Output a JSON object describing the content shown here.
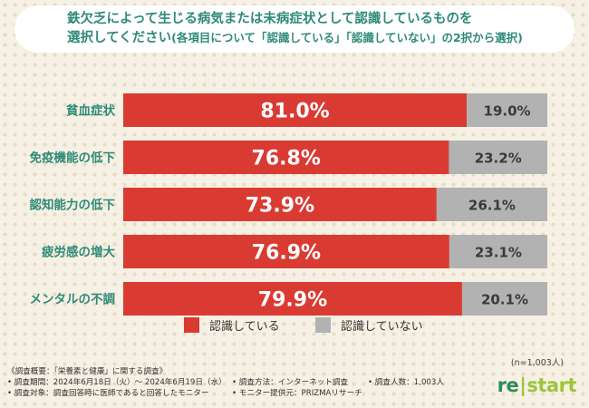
{
  "title": {
    "line1": "鉄欠乏によって生じる病気または未病症状として認識しているものを",
    "line2_main": "選択してください",
    "line2_sub": "(各項目について「認識している」「認識していない」の2択から選択)"
  },
  "chart_data": {
    "type": "bar",
    "orientation": "horizontal",
    "stacked": true,
    "percent_stacked": true,
    "categories": [
      "貧血症状",
      "免疫機能の低下",
      "認知能力の低下",
      "疲労感の増大",
      "メンタルの不調"
    ],
    "series": [
      {
        "name": "認識している",
        "color": "#d93b33",
        "values": [
          81.0,
          76.8,
          73.9,
          76.9,
          79.9
        ]
      },
      {
        "name": "認識していない",
        "color": "#b2b2b2",
        "values": [
          19.0,
          23.2,
          26.1,
          23.1,
          20.1
        ]
      }
    ],
    "value_labels": [
      [
        "81.0%",
        "76.8%",
        "73.9%",
        "76.9%",
        "79.9%"
      ],
      [
        "19.0%",
        "23.2%",
        "26.1%",
        "23.1%",
        "20.1%"
      ]
    ],
    "xlim": [
      0,
      100
    ],
    "legend_position": "bottom-center"
  },
  "legend": [
    {
      "label": "認識している",
      "color": "#d93b33"
    },
    {
      "label": "認識していない",
      "color": "#b2b2b2"
    }
  ],
  "n_note": "(n=1,003人)",
  "footer": {
    "summary": "《調査概要：「栄養素と健康」に関する調査》",
    "period": "• 調査期間：2024年6月18日（火）～ 2024年6月19日（水）",
    "method": "• 調査方法：インターネット調査",
    "count": "• 調査人数：1,003人",
    "target": "• 調査対象：調査回答時に医師であると回答したモニター",
    "provider": "• モニター提供元：PRIZMAリサーチ"
  },
  "logo": {
    "re": "re",
    "bar": "|",
    "start": "start"
  }
}
